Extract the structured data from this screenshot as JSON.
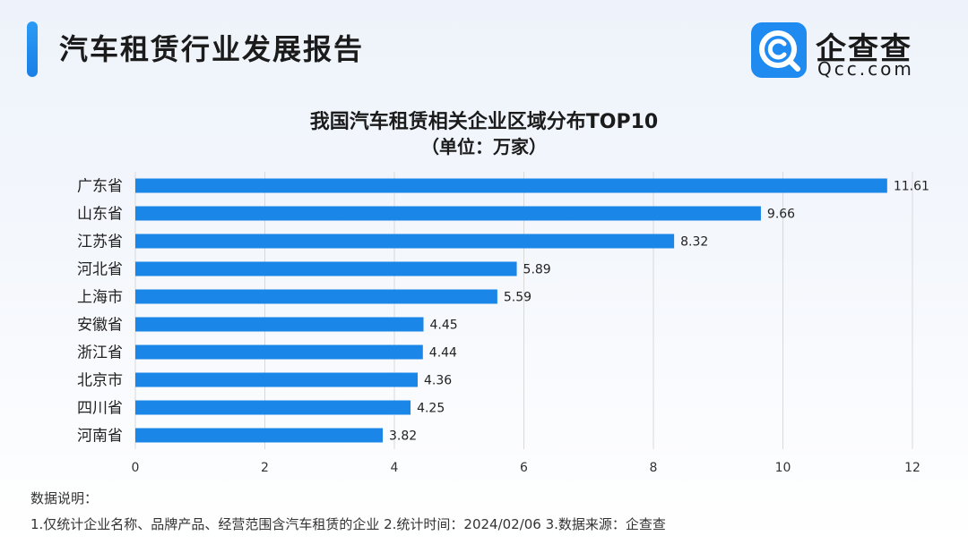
{
  "header": {
    "title": "汽车租赁行业发展报告"
  },
  "logo": {
    "icon": "qcc-magnifier-c-icon",
    "name_cn": "企查查",
    "name_en": "Qcc.com"
  },
  "colors": {
    "accent": "#1a7fe6",
    "bar": "#1a86e8",
    "grid": "#d9d9d9"
  },
  "chart_data": {
    "type": "bar",
    "orientation": "horizontal",
    "title": "我国汽车租赁相关企业区域分布TOP10",
    "subtitle": "（单位：万家）",
    "categories": [
      "广东省",
      "山东省",
      "江苏省",
      "河北省",
      "上海市",
      "安徽省",
      "浙江省",
      "北京市",
      "四川省",
      "河南省"
    ],
    "values": [
      11.61,
      9.66,
      8.32,
      5.89,
      5.59,
      4.45,
      4.44,
      4.36,
      4.25,
      3.82
    ],
    "value_labels": [
      "11.61",
      "9.66",
      "8.32",
      "5.89",
      "5.59",
      "4.45",
      "4.44",
      "4.36",
      "4.25",
      "3.82"
    ],
    "xlim": [
      0,
      12
    ],
    "xticks": [
      0,
      2,
      4,
      6,
      8,
      10,
      12
    ],
    "xlabel": "",
    "ylabel": "",
    "grid": "vertical"
  },
  "notes": {
    "label": "数据说明：",
    "text": "1.仅统计企业名称、品牌产品、经营范围含汽车租赁的企业   2.统计时间：2024/02/06   3.数据来源：企查查"
  }
}
